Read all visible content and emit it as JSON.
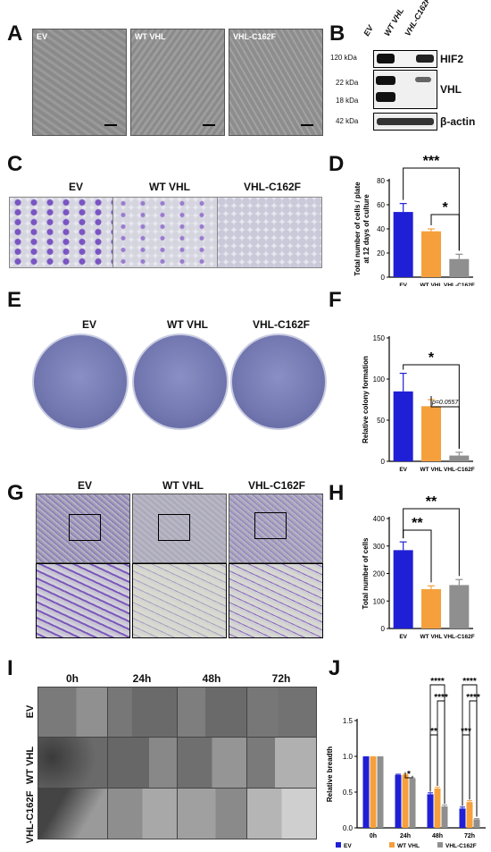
{
  "panels": {
    "A": {
      "label": "A",
      "images": [
        "EV",
        "WT VHL",
        "VHL-C162F"
      ]
    },
    "B": {
      "label": "B",
      "lanes": [
        "EV",
        "WT VHL",
        "VHL-C162F"
      ],
      "rows": [
        {
          "name": "HIF2",
          "markers": [
            "120 kDa"
          ]
        },
        {
          "name": "VHL",
          "markers": [
            "22 kDa",
            "18 kDa"
          ]
        },
        {
          "name": "β-actin",
          "markers": [
            "42 kDa"
          ]
        }
      ]
    },
    "C": {
      "label": "C",
      "images": [
        "EV",
        "WT VHL",
        "VHL-C162F"
      ]
    },
    "D": {
      "label": "D"
    },
    "E": {
      "label": "E",
      "images": [
        "EV",
        "WT VHL",
        "VHL-C162F"
      ]
    },
    "F": {
      "label": "F"
    },
    "G": {
      "label": "G",
      "images": [
        "EV",
        "WT VHL",
        "VHL-C162F"
      ]
    },
    "H": {
      "label": "H"
    },
    "I": {
      "label": "I",
      "timepoints": [
        "0h",
        "24h",
        "48h",
        "72h"
      ],
      "rows": [
        "EV",
        "WT VHL",
        "VHL-C162F"
      ]
    },
    "J": {
      "label": "J"
    }
  },
  "chart_data": [
    {
      "id": "D",
      "type": "bar",
      "categories": [
        "EV",
        "WT VHL",
        "VHL-C162F"
      ],
      "values": [
        54,
        38,
        15
      ],
      "errors": [
        7,
        2,
        4
      ],
      "colors": [
        "#1f1fd6",
        "#f5a03c",
        "#8f8f8f"
      ],
      "ylabel": "Total number of cells / plate at 12 days of culture",
      "ylabel_lines": [
        "Total number of cells / plate",
        "at 12 days of culture"
      ],
      "ylim": [
        0,
        80
      ],
      "yticks": [
        0,
        20,
        40,
        60,
        80
      ],
      "significance": [
        {
          "from": 0,
          "to": 2,
          "label": "***"
        },
        {
          "from": 1,
          "to": 2,
          "label": "*"
        }
      ]
    },
    {
      "id": "F",
      "type": "bar",
      "categories": [
        "EV",
        "WT VHL",
        "VHL-C162F"
      ],
      "values": [
        85,
        67,
        7
      ],
      "errors": [
        22,
        8,
        4
      ],
      "colors": [
        "#1f1fd6",
        "#f5a03c",
        "#8f8f8f"
      ],
      "ylabel": "Relative colony formation",
      "ylim": [
        0,
        150
      ],
      "yticks": [
        0,
        50,
        100,
        150
      ],
      "significance": [
        {
          "from": 0,
          "to": 2,
          "label": "*"
        },
        {
          "from": 1,
          "to": 2,
          "label": "p=0.0557"
        }
      ]
    },
    {
      "id": "H",
      "type": "bar",
      "categories": [
        "EV",
        "WT VHL",
        "VHL-C162F"
      ],
      "values": [
        285,
        143,
        158
      ],
      "errors": [
        30,
        12,
        20
      ],
      "colors": [
        "#1f1fd6",
        "#f5a03c",
        "#8f8f8f"
      ],
      "ylabel": "Total number of cells",
      "ylim": [
        0,
        400
      ],
      "yticks": [
        0,
        100,
        200,
        300,
        400
      ],
      "significance": [
        {
          "from": 0,
          "to": 1,
          "label": "**"
        },
        {
          "from": 0,
          "to": 2,
          "label": "**"
        }
      ]
    },
    {
      "id": "J",
      "type": "bar",
      "categories": [
        "0h",
        "24h",
        "48h",
        "72h"
      ],
      "series": [
        {
          "name": "EV",
          "color": "#1f1fd6",
          "values": [
            1.0,
            0.74,
            0.47,
            0.27
          ],
          "errors": [
            0,
            0.01,
            0.02,
            0.02
          ]
        },
        {
          "name": "WT VHL",
          "color": "#f5a03c",
          "values": [
            1.0,
            0.74,
            0.55,
            0.36
          ],
          "errors": [
            0,
            0.01,
            0.02,
            0.02
          ]
        },
        {
          "name": "VHL-C162F",
          "color": "#8f8f8f",
          "values": [
            1.0,
            0.69,
            0.3,
            0.12
          ],
          "errors": [
            0,
            0.01,
            0.02,
            0.01
          ]
        }
      ],
      "ylabel": "Relative breadth",
      "ylim": [
        0,
        1.5
      ],
      "yticks": [
        0.0,
        0.5,
        1.0,
        1.5
      ],
      "significance": [
        {
          "group": 1,
          "from": 1,
          "to": 2,
          "label": "*"
        },
        {
          "group": 2,
          "from": 0,
          "to": 2,
          "label": "****"
        },
        {
          "group": 2,
          "from": 1,
          "to": 2,
          "label": "****"
        },
        {
          "group": 2,
          "from": 0,
          "to": 1,
          "label": "**"
        },
        {
          "group": 3,
          "from": 0,
          "to": 2,
          "label": "****"
        },
        {
          "group": 3,
          "from": 1,
          "to": 2,
          "label": "****"
        },
        {
          "group": 3,
          "from": 0,
          "to": 1,
          "label": "***"
        }
      ]
    }
  ]
}
